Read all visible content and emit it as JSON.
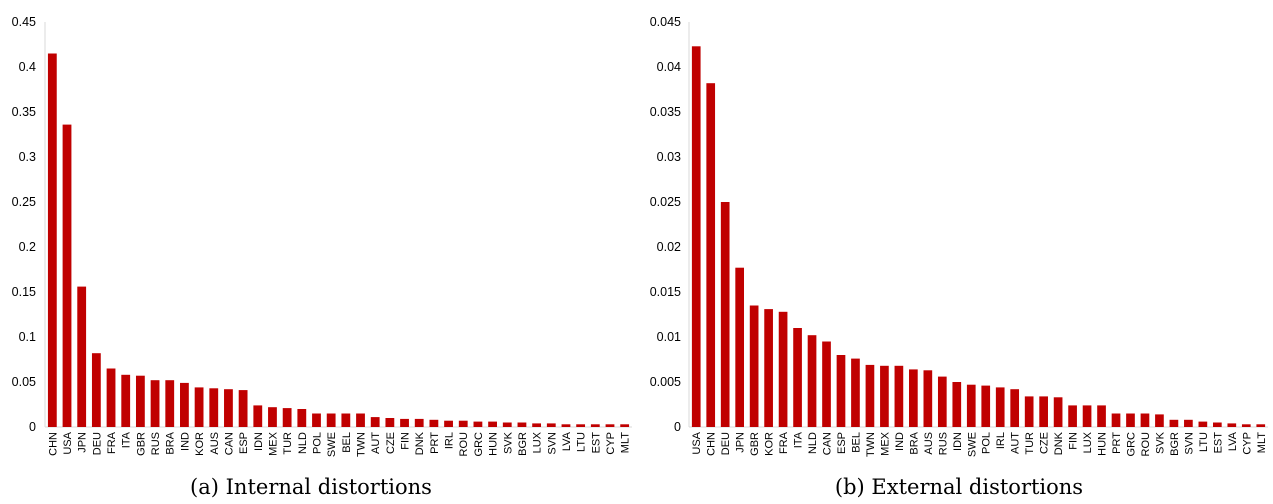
{
  "chart_data": [
    {
      "type": "bar",
      "caption": "(a) Internal distortions",
      "color": "#C00000",
      "ylim": [
        0,
        0.45
      ],
      "yticks": [
        "0",
        "0.05",
        "0.1",
        "0.15",
        "0.2",
        "0.25",
        "0.3",
        "0.35",
        "0.4",
        "0.45"
      ],
      "categories": [
        "CHN",
        "USA",
        "JPN",
        "DEU",
        "FRA",
        "ITA",
        "GBR",
        "RUS",
        "BRA",
        "IND",
        "KOR",
        "AUS",
        "CAN",
        "ESP",
        "IDN",
        "MEX",
        "TUR",
        "NLD",
        "POL",
        "SWE",
        "BEL",
        "TWN",
        "AUT",
        "CZE",
        "FIN",
        "DNK",
        "PRT",
        "IRL",
        "ROU",
        "GRC",
        "HUN",
        "SVK",
        "BGR",
        "LUX",
        "SVN",
        "LVA",
        "LTU",
        "EST",
        "CYP",
        "MLT"
      ],
      "values": [
        0.415,
        0.336,
        0.156,
        0.082,
        0.065,
        0.058,
        0.057,
        0.052,
        0.052,
        0.049,
        0.044,
        0.043,
        0.042,
        0.041,
        0.024,
        0.022,
        0.021,
        0.02,
        0.015,
        0.015,
        0.015,
        0.015,
        0.011,
        0.01,
        0.009,
        0.009,
        0.008,
        0.007,
        0.007,
        0.006,
        0.006,
        0.005,
        0.005,
        0.004,
        0.004,
        0.003,
        0.003,
        0.003,
        0.003,
        0.003
      ]
    },
    {
      "type": "bar",
      "caption": "(b) External distortions",
      "color": "#C00000",
      "ylim": [
        0,
        0.045
      ],
      "yticks": [
        "0",
        "0.005",
        "0.01",
        "0.015",
        "0.02",
        "0.025",
        "0.03",
        "0.035",
        "0.04",
        "0.045"
      ],
      "categories": [
        "USA",
        "CHN",
        "DEU",
        "JPN",
        "GBR",
        "KOR",
        "FRA",
        "ITA",
        "NLD",
        "CAN",
        "ESP",
        "BEL",
        "TWN",
        "MEX",
        "IND",
        "BRA",
        "AUS",
        "RUS",
        "IDN",
        "SWE",
        "POL",
        "IRL",
        "AUT",
        "TUR",
        "CZE",
        "DNK",
        "FIN",
        "LUX",
        "HUN",
        "PRT",
        "GRC",
        "ROU",
        "SVK",
        "BGR",
        "SVN",
        "LTU",
        "EST",
        "LVA",
        "CYP",
        "MLT"
      ],
      "values": [
        0.0423,
        0.0382,
        0.025,
        0.0177,
        0.0135,
        0.0131,
        0.0128,
        0.011,
        0.0102,
        0.0095,
        0.008,
        0.0076,
        0.0069,
        0.0068,
        0.0068,
        0.0064,
        0.0063,
        0.0056,
        0.005,
        0.0047,
        0.0046,
        0.0044,
        0.0042,
        0.0034,
        0.0034,
        0.0033,
        0.0024,
        0.0024,
        0.0024,
        0.0015,
        0.0015,
        0.0015,
        0.0014,
        0.0008,
        0.0008,
        0.0006,
        0.0005,
        0.0004,
        0.0003,
        0.0003
      ]
    }
  ]
}
